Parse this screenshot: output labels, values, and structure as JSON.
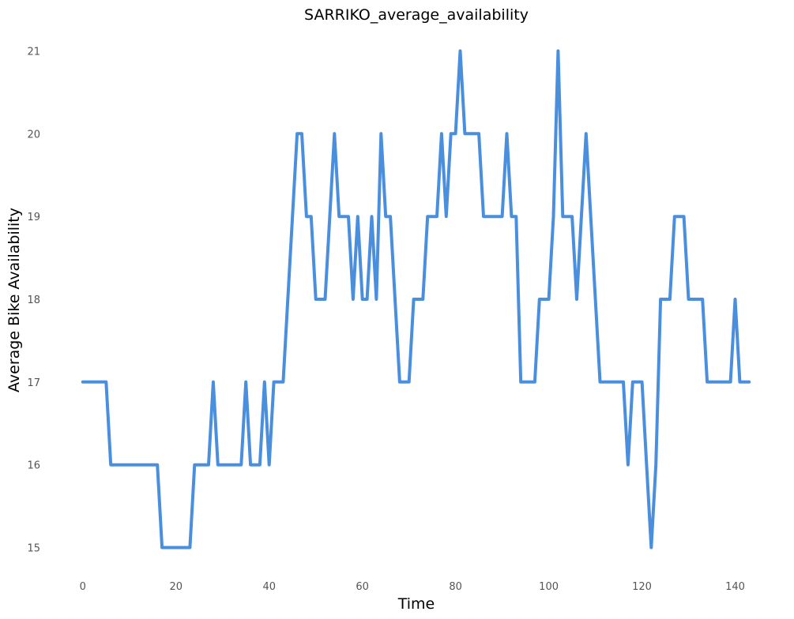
{
  "chart_data": {
    "type": "line",
    "title": "SARRIKO_average_availability",
    "xlabel": "Time",
    "ylabel": "Average Bike Availability",
    "xlim": [
      -2,
      145
    ],
    "ylim": [
      14.7,
      21.3
    ],
    "xticks": [
      0,
      20,
      40,
      60,
      80,
      100,
      120,
      140
    ],
    "yticks": [
      15,
      16,
      17,
      18,
      19,
      20,
      21
    ],
    "grid": false,
    "color": "#4a8ede",
    "x": [
      0,
      1,
      2,
      3,
      4,
      5,
      6,
      7,
      8,
      9,
      10,
      11,
      12,
      13,
      14,
      15,
      16,
      17,
      18,
      19,
      20,
      21,
      22,
      23,
      24,
      25,
      26,
      27,
      28,
      29,
      30,
      31,
      32,
      33,
      34,
      35,
      36,
      37,
      38,
      39,
      40,
      41,
      42,
      43,
      44,
      45,
      46,
      47,
      48,
      49,
      50,
      51,
      52,
      53,
      54,
      55,
      56,
      57,
      58,
      59,
      60,
      61,
      62,
      63,
      64,
      65,
      66,
      67,
      68,
      69,
      70,
      71,
      72,
      73,
      74,
      75,
      76,
      77,
      78,
      79,
      80,
      81,
      82,
      83,
      84,
      85,
      86,
      87,
      88,
      89,
      90,
      91,
      92,
      93,
      94,
      95,
      96,
      97,
      98,
      99,
      100,
      101,
      102,
      103,
      104,
      105,
      106,
      107,
      108,
      109,
      110,
      111,
      112,
      113,
      114,
      115,
      116,
      117,
      118,
      119,
      120,
      121,
      122,
      123,
      124,
      125,
      126,
      127,
      128,
      129,
      130,
      131,
      132,
      133,
      134,
      135,
      136,
      137,
      138,
      139,
      140,
      141,
      142,
      143
    ],
    "y": [
      17,
      17,
      17,
      17,
      17,
      17,
      16,
      16,
      16,
      16,
      16,
      16,
      16,
      16,
      16,
      16,
      16,
      15,
      15,
      15,
      15,
      15,
      15,
      15,
      16,
      16,
      16,
      16,
      17,
      16,
      16,
      16,
      16,
      16,
      16,
      17,
      16,
      16,
      16,
      17,
      16,
      17,
      17,
      17,
      18,
      19,
      20,
      20,
      19,
      19,
      18,
      18,
      18,
      19,
      20,
      19,
      19,
      19,
      18,
      19,
      18,
      18,
      19,
      18,
      20,
      19,
      19,
      18,
      17,
      17,
      17,
      18,
      18,
      18,
      19,
      19,
      19,
      20,
      19,
      20,
      20,
      21,
      20,
      20,
      20,
      20,
      19,
      19,
      19,
      19,
      19,
      20,
      19,
      19,
      17,
      17,
      17,
      17,
      18,
      18,
      18,
      19,
      21,
      19,
      19,
      19,
      18,
      19,
      20,
      19,
      18,
      17,
      17,
      17,
      17,
      17,
      17,
      16,
      17,
      17,
      17,
      16,
      15,
      16,
      18,
      18,
      18,
      19,
      19,
      19,
      18,
      18,
      18,
      18,
      17,
      17,
      17,
      17,
      17,
      17,
      18,
      17,
      17,
      17
    ]
  }
}
